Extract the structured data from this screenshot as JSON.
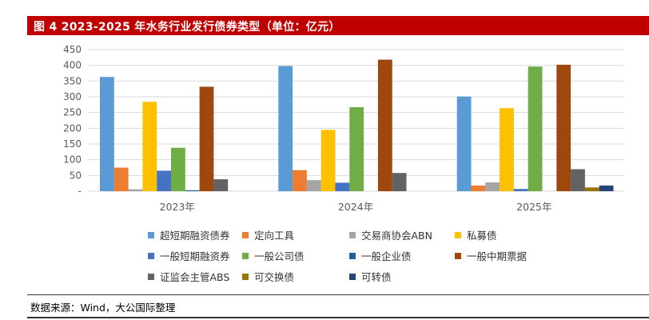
{
  "header": {
    "title": "图 4   2023-2025 年水务行业发行债券类型（单位：亿元）"
  },
  "source": "数据来源：Wind，大公国际整理",
  "chart_data": {
    "type": "bar",
    "categories": [
      "2023年",
      "2024年",
      "2025年"
    ],
    "ylim": [
      0,
      450
    ],
    "yticks": [
      "-",
      "50",
      "100",
      "150",
      "200",
      "250",
      "300",
      "350",
      "400",
      "450"
    ],
    "grid": true,
    "legend_position": "bottom",
    "series": [
      {
        "name": "超短期融资债券",
        "color": "#5b9bd5",
        "values": [
          363,
          398,
          301
        ]
      },
      {
        "name": "定向工具",
        "color": "#ed7d31",
        "values": [
          75,
          67,
          18
        ]
      },
      {
        "name": "交易商协会ABN",
        "color": "#a5a5a5",
        "values": [
          6,
          35,
          28
        ]
      },
      {
        "name": "私募债",
        "color": "#ffc000",
        "values": [
          284,
          195,
          264
        ]
      },
      {
        "name": "一般短期融资券",
        "color": "#4472c4",
        "values": [
          65,
          27,
          7
        ]
      },
      {
        "name": "一般公司债",
        "color": "#70ad47",
        "values": [
          138,
          267,
          396
        ]
      },
      {
        "name": "一般企业债",
        "color": "#255e91",
        "values": [
          3,
          0,
          0
        ]
      },
      {
        "name": "一般中期票据",
        "color": "#9e480e",
        "values": [
          332,
          418,
          402
        ]
      },
      {
        "name": "证监会主管ABS",
        "color": "#636363",
        "values": [
          38,
          58,
          70
        ]
      },
      {
        "name": "可交换债",
        "color": "#997300",
        "values": [
          0,
          0,
          12
        ]
      },
      {
        "name": "可转债",
        "color": "#264478",
        "values": [
          0,
          0,
          18
        ]
      }
    ]
  }
}
